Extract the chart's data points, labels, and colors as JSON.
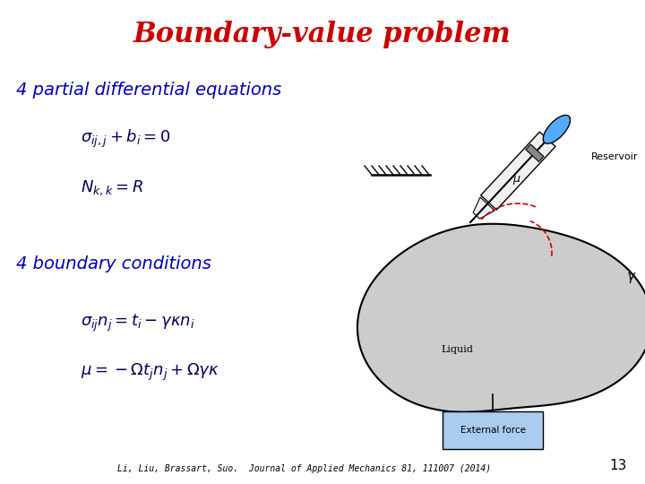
{
  "title": "Boundary-value problem",
  "title_color": "#CC0000",
  "title_fontsize": 22,
  "title_fontstyle": "italic",
  "title_weight": "bold",
  "section1": "4 partial differential equations",
  "section1_color": "#0000BB",
  "section1_fontsize": 14,
  "eq1a": "$\\sigma_{ij,j} + b_i = 0$",
  "eq1b": "$N_{k,k} = R$",
  "eq_color": "#000060",
  "eq_fontsize": 13,
  "section2": "4 boundary conditions",
  "section2_color": "#0000BB",
  "section2_fontsize": 14,
  "eq2a": "$\\sigma_{ij}n_j = t_i - \\gamma\\kappa n_i$",
  "eq2b": "$\\mu = -\\Omega t_j n_j + \\Omega\\gamma\\kappa$",
  "footnote": "Li, Liu, Brassart, Suo.  Journal of Applied Mechanics 81, 111007 (2014)",
  "footnote_fontsize": 7,
  "slide_number": "13",
  "slide_number_fontsize": 11,
  "bg_color": "#FFFFFF",
  "blob_color": "#CCCCCC",
  "blob_edge": "#000000",
  "box_color": "#AACCEE",
  "syringe_color": "#F0F0F0",
  "blue_ellipse_color": "#55AAFF",
  "gray_cap_color": "#888888",
  "red_arc_color": "#CC0000"
}
